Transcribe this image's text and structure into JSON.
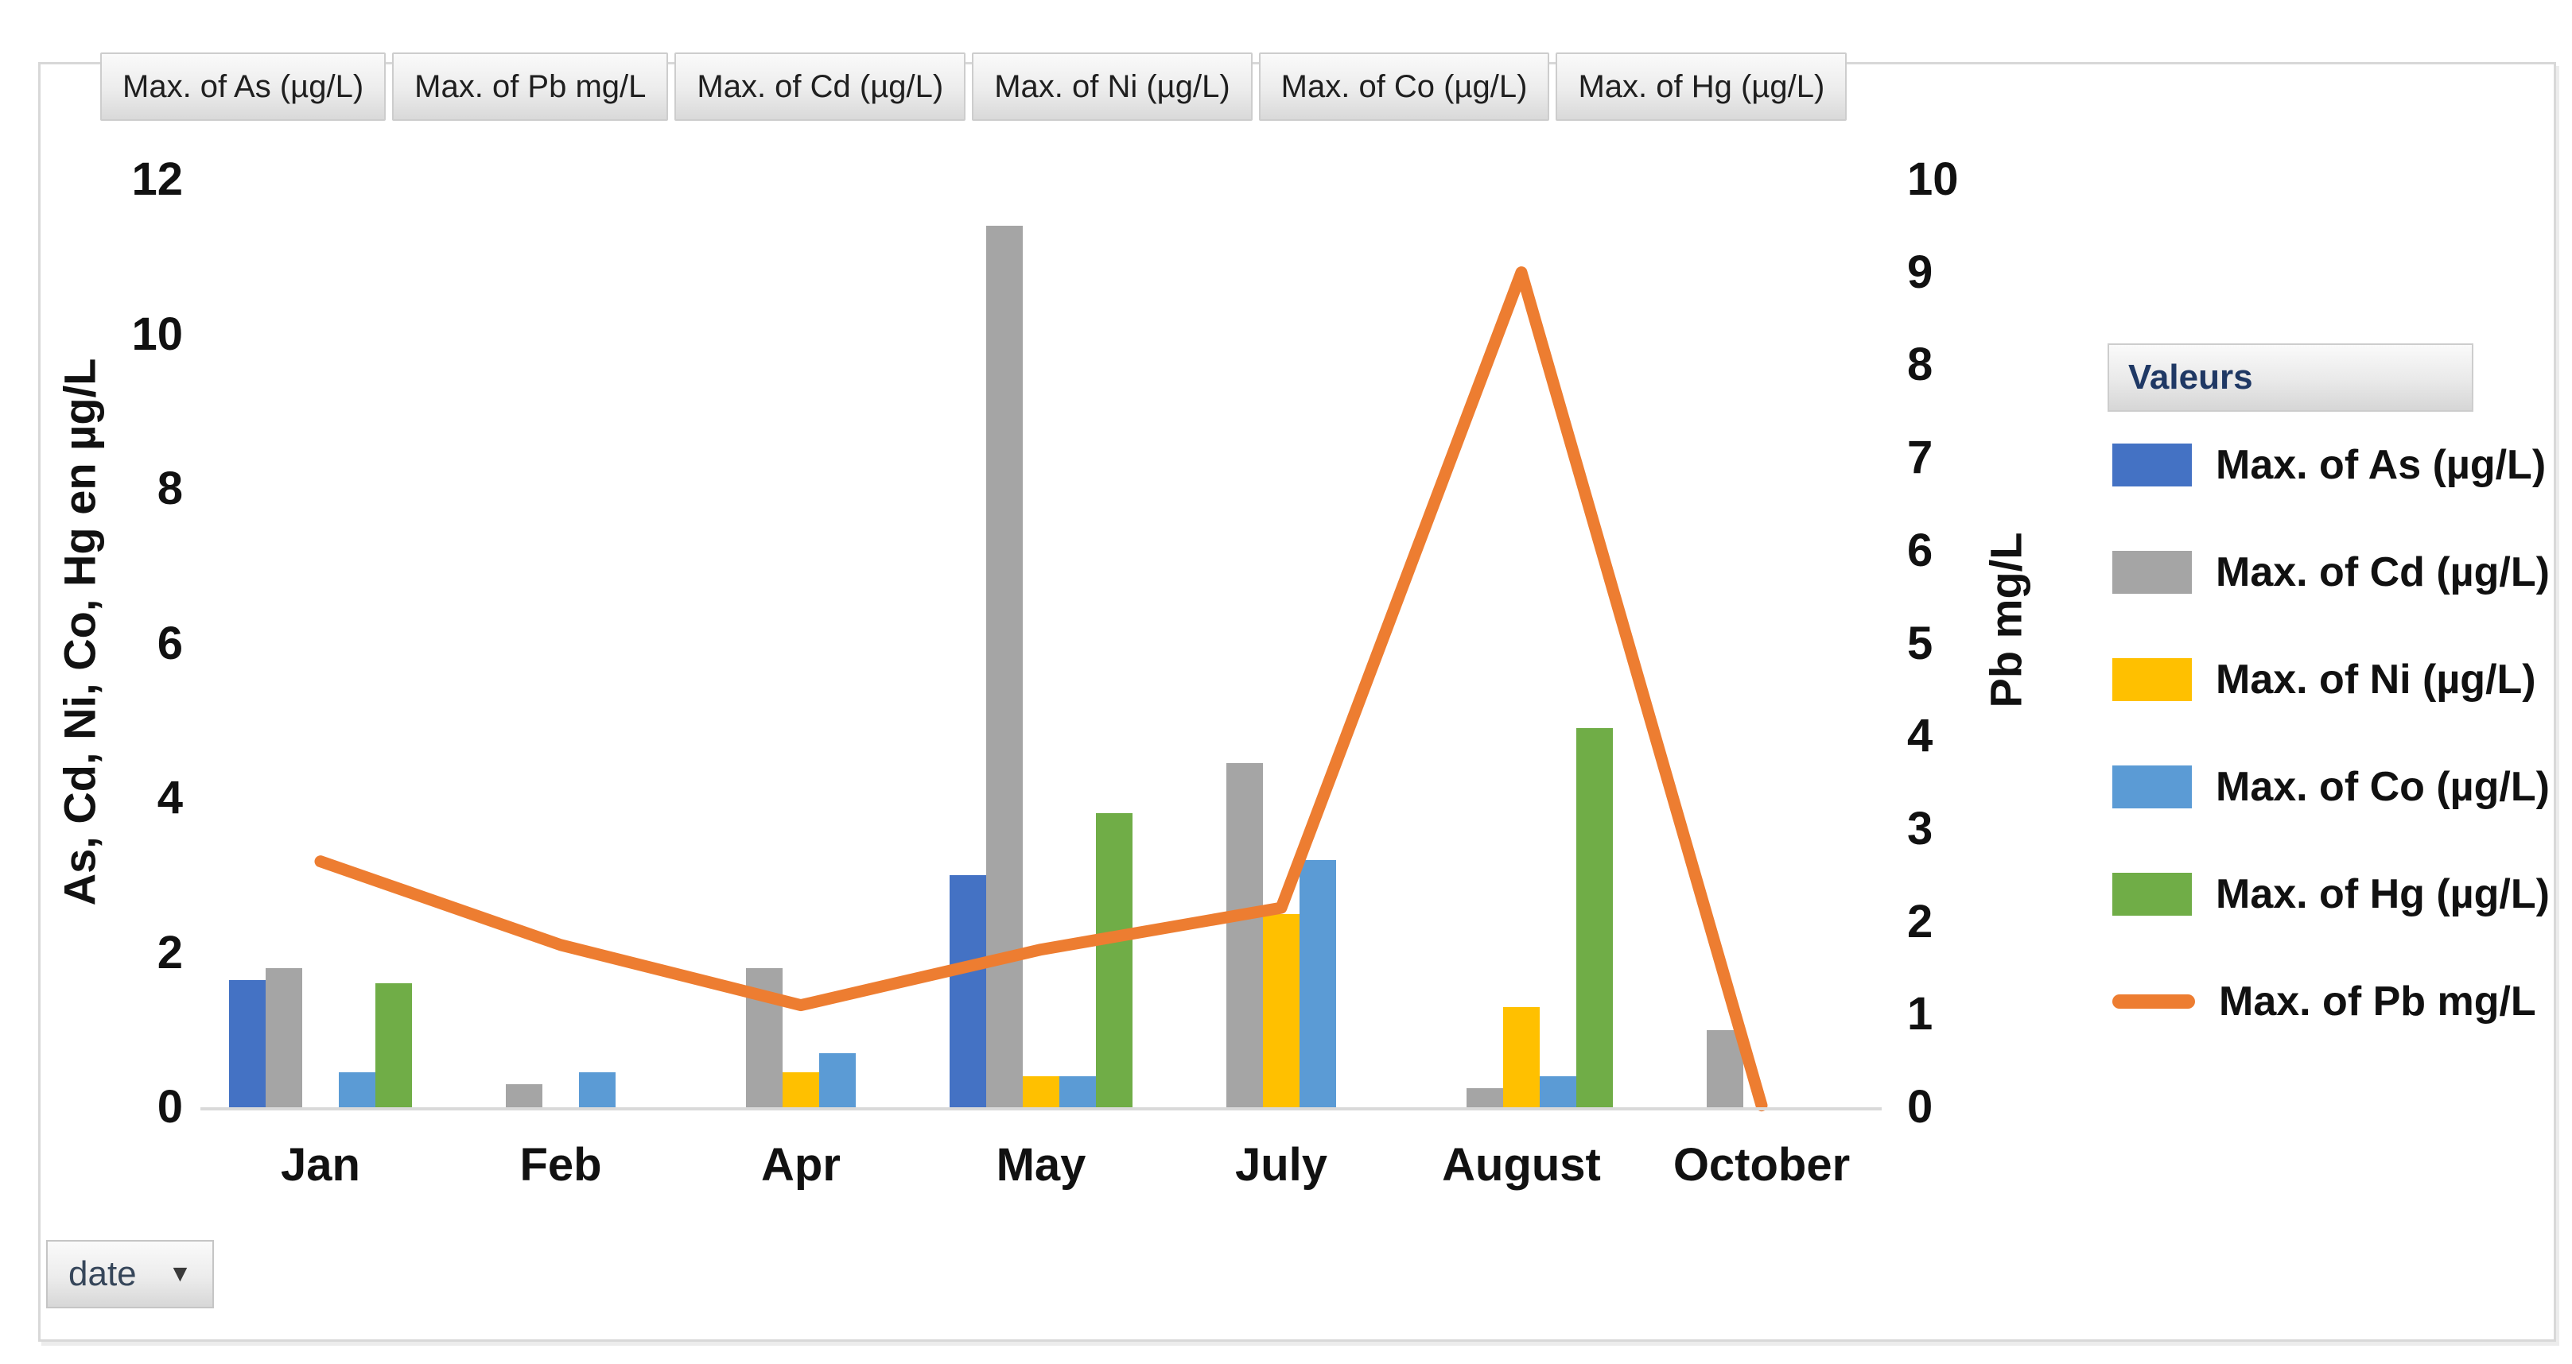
{
  "window": {
    "background": "#ffffff",
    "border_color": "#d8d8d8"
  },
  "field_buttons": {
    "labels": [
      "Max. of As (µg/L)",
      "Max. of Pb mg/L",
      "Max. of Cd (µg/L)",
      "Max. of Ni (µg/L)",
      "Max. of Co (µg/L)",
      "Max. of Hg (µg/L)"
    ]
  },
  "axis_button": {
    "label": "date",
    "dropdown_icon": "▼"
  },
  "legend": {
    "header": "Valeurs",
    "items": [
      {
        "label": "Max. of As (µg/L)",
        "color": "#4472C4",
        "marker": "bar"
      },
      {
        "label": "Max. of Cd (µg/L)",
        "color": "#A5A5A5",
        "marker": "bar"
      },
      {
        "label": "Max. of Ni (µg/L)",
        "color": "#FFC000",
        "marker": "bar"
      },
      {
        "label": "Max. of Co (µg/L)",
        "color": "#5B9BD5",
        "marker": "bar"
      },
      {
        "label": "Max. of Hg (µg/L)",
        "color": "#70AD47",
        "marker": "bar"
      },
      {
        "label": "Max. of Pb mg/L",
        "color": "#ED7D31",
        "marker": "line"
      }
    ]
  },
  "chart_data": {
    "type": "combo-bar-line",
    "categories": [
      "Jan",
      "Feb",
      "Apr",
      "May",
      "July",
      "August",
      "October"
    ],
    "series": [
      {
        "name": "Max. of As (µg/L)",
        "type": "bar",
        "axis": "left",
        "color": "#4472C4",
        "values": [
          1.65,
          0,
          0,
          3.0,
          0,
          0,
          0
        ]
      },
      {
        "name": "Max. of Cd (µg/L)",
        "type": "bar",
        "axis": "left",
        "color": "#A5A5A5",
        "values": [
          1.8,
          0.3,
          1.8,
          11.4,
          4.45,
          0.25,
          1.0
        ]
      },
      {
        "name": "Max. of Ni (µg/L)",
        "type": "bar",
        "axis": "left",
        "color": "#FFC000",
        "values": [
          0,
          0,
          0.45,
          0.4,
          2.5,
          1.3,
          0
        ]
      },
      {
        "name": "Max. of Co (µg/L)",
        "type": "bar",
        "axis": "left",
        "color": "#5B9BD5",
        "values": [
          0.45,
          0.45,
          0.7,
          0.4,
          3.2,
          0.4,
          0
        ]
      },
      {
        "name": "Max. of Hg (µg/L)",
        "type": "bar",
        "axis": "left",
        "color": "#70AD47",
        "values": [
          1.6,
          0,
          0,
          3.8,
          0,
          4.9,
          0
        ]
      },
      {
        "name": "Max. of Pb mg/L",
        "type": "line",
        "axis": "right",
        "color": "#ED7D31",
        "values": [
          2.65,
          1.75,
          1.1,
          1.7,
          2.15,
          9.0,
          0.02
        ]
      }
    ],
    "left_axis": {
      "title": "As, Cd, Ni, Co, Hg en µg/L",
      "ticks": [
        0,
        2,
        4,
        6,
        8,
        10,
        12
      ],
      "min": 0,
      "max": 12
    },
    "right_axis": {
      "title": "Pb mg/L",
      "ticks": [
        0,
        1,
        2,
        3,
        4,
        5,
        6,
        7,
        8,
        9,
        10
      ],
      "min": 0,
      "max": 10
    },
    "x_axis": {
      "field": "date"
    },
    "gridlines": false,
    "legend_position": "right"
  }
}
